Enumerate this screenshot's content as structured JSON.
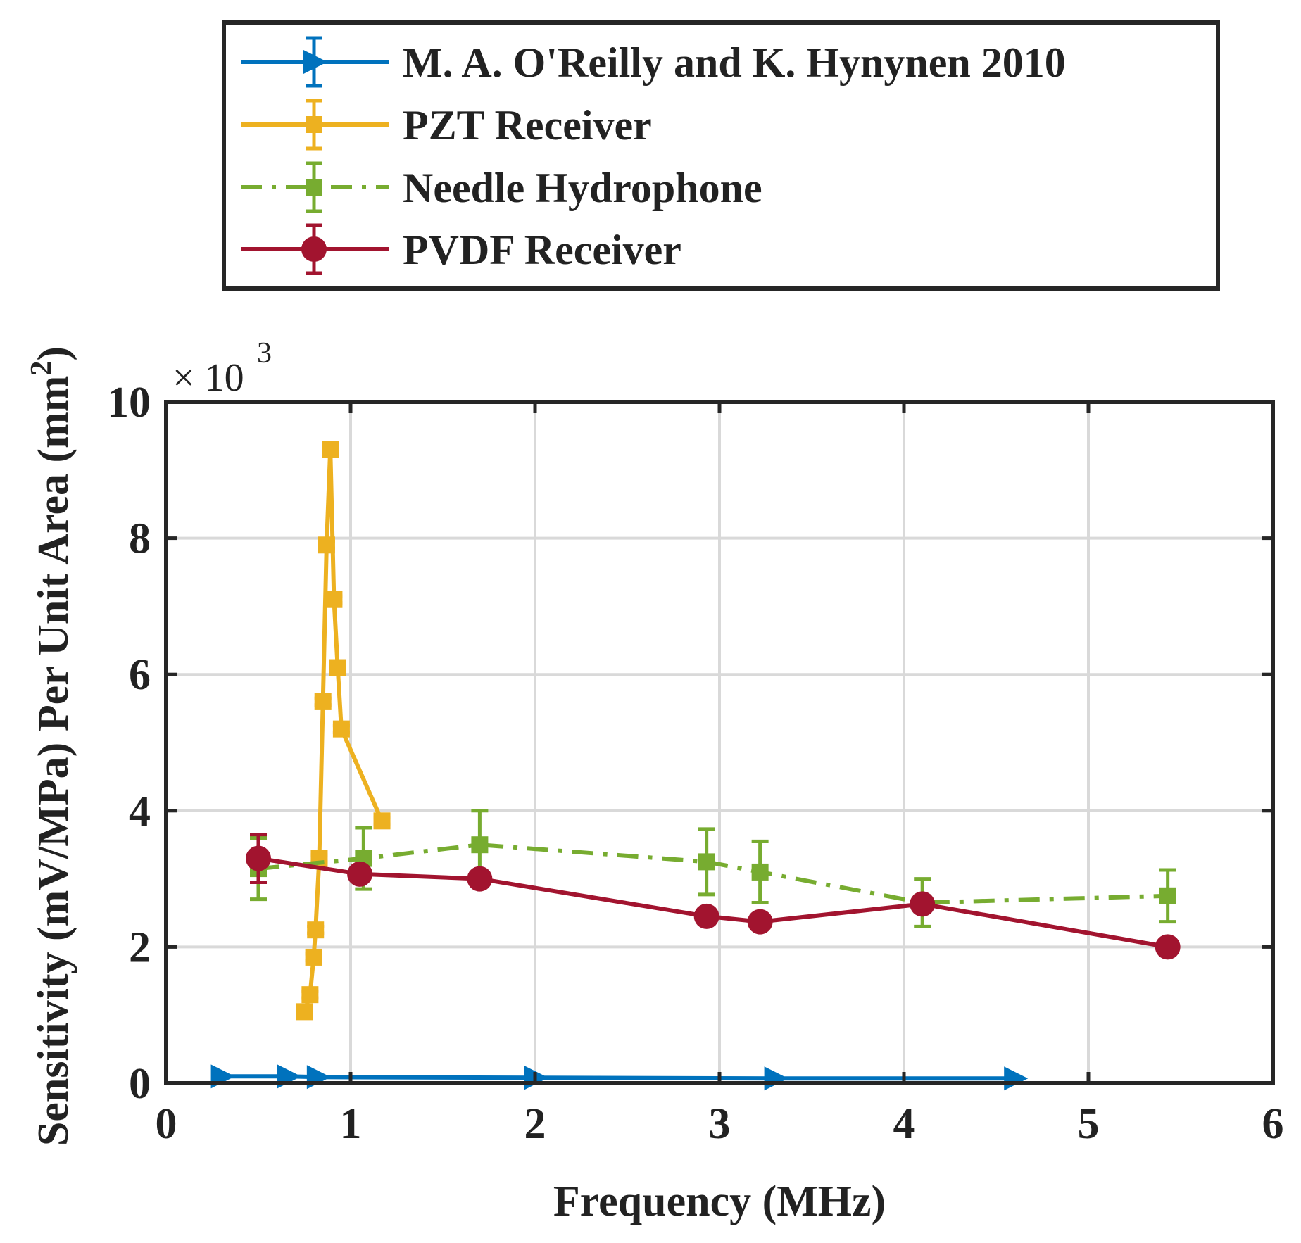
{
  "chart_data": {
    "type": "line",
    "title": "",
    "xlabel": "Frequency (MHz)",
    "ylabel": "Sensitivity (mV/MPa) Per Unit Area (mm",
    "ylabel_superscript": "2",
    "ylabel_suffix": ")",
    "y_multiplier_prefix": "× 10",
    "y_multiplier_exponent": "3",
    "xlim": [
      0,
      6
    ],
    "ylim": [
      0,
      10
    ],
    "x_ticks": [
      "0",
      "1",
      "2",
      "3",
      "4",
      "5",
      "6"
    ],
    "y_ticks": [
      "0",
      "2",
      "4",
      "6",
      "8",
      "10"
    ],
    "grid": true,
    "legend_position": "top-center (outside plot)",
    "series": [
      {
        "name": "M. A. O'Reilly and K. Hynynen 2010",
        "color": "#0072BD",
        "line_style": "solid",
        "marker": "triangle-right",
        "x": [
          0.3,
          0.66,
          0.82,
          2.0,
          3.3,
          4.6
        ],
        "y": [
          0.1,
          0.1,
          0.09,
          0.08,
          0.07,
          0.07
        ],
        "err": [
          0,
          0,
          0,
          0,
          0,
          0
        ]
      },
      {
        "name": "PZT Receiver",
        "color": "#EDB120",
        "line_style": "solid",
        "marker": "square",
        "x": [
          0.75,
          0.78,
          0.8,
          0.81,
          0.83,
          0.85,
          0.87,
          0.89,
          0.91,
          0.93,
          0.95,
          1.17
        ],
        "y": [
          1.05,
          1.3,
          1.85,
          2.25,
          3.3,
          5.6,
          7.9,
          9.3,
          7.1,
          6.1,
          5.2,
          3.85
        ],
        "err": [
          0.05,
          0.05,
          0.05,
          0.05,
          0.05,
          0.05,
          0.05,
          0.05,
          0.05,
          0.05,
          0.05,
          0.05
        ]
      },
      {
        "name": "Needle Hydrophone",
        "color": "#77AC30",
        "line_style": "dash-dot",
        "marker": "square",
        "x": [
          0.5,
          1.07,
          1.7,
          2.93,
          3.22,
          4.1,
          5.43
        ],
        "y": [
          3.15,
          3.3,
          3.5,
          3.25,
          3.1,
          2.65,
          2.75
        ],
        "err": [
          0.45,
          0.45,
          0.5,
          0.48,
          0.45,
          0.35,
          0.38
        ]
      },
      {
        "name": "PVDF Receiver",
        "color": "#A2142F",
        "line_style": "solid",
        "marker": "circle",
        "x": [
          0.5,
          1.05,
          1.7,
          2.93,
          3.22,
          4.1,
          5.43
        ],
        "y": [
          3.3,
          3.07,
          3.0,
          2.45,
          2.37,
          2.63,
          2.0
        ],
        "err": [
          0.35,
          0.1,
          0.05,
          0.05,
          0.05,
          0.05,
          0.05
        ]
      }
    ]
  }
}
